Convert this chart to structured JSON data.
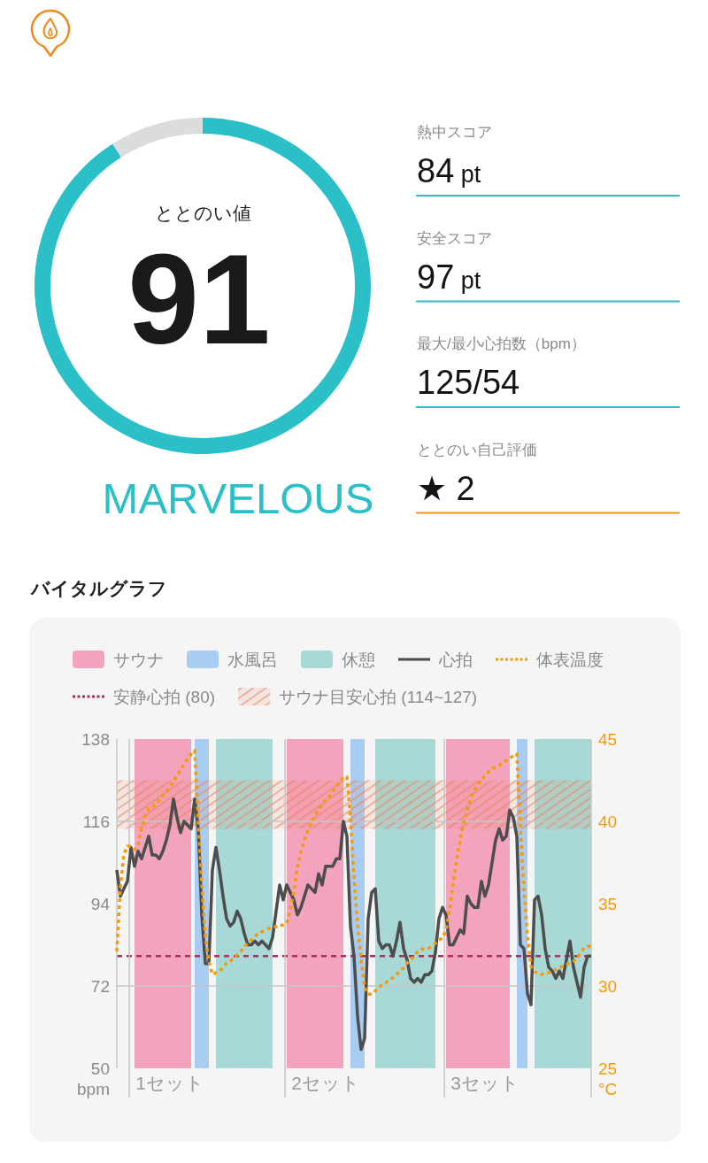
{
  "chart_data": [
    {
      "type": "donut",
      "title": "ととのい値",
      "categories": [
        null,
        null
      ],
      "values": [
        91,
        9
      ],
      "colors": [
        "#2bbfc8",
        "#dcdcdc"
      ],
      "value_labels": [
        "91",
        null
      ],
      "annotations": [
        "MARVELOUS"
      ]
    },
    {
      "type": "other",
      "annotations": [
        "熱中スコア",
        "84 pt",
        "安全スコア",
        "97 pt",
        "最大/最小心拍数（bpm）",
        "125/54",
        "ととのい自己評価",
        "★ 2"
      ]
    },
    {
      "type": "line",
      "title": "バイタルグラフ",
      "ylabel": "bpm",
      "y2label": "°C",
      "ylim": [
        50,
        138
      ],
      "yticks": [
        50,
        72,
        94,
        116,
        138
      ],
      "y2lim": [
        25,
        45
      ],
      "y2ticks": [
        25,
        30,
        35,
        40,
        45
      ],
      "legend": "top",
      "categories": [
        null,
        null,
        null,
        null,
        null,
        null,
        null,
        null,
        null,
        null,
        null,
        null,
        null,
        null,
        null,
        "1セット",
        null,
        null,
        null,
        null,
        null,
        null,
        null,
        null,
        null,
        null,
        null,
        null,
        null,
        null,
        null,
        null,
        null,
        null,
        null,
        null,
        null,
        null,
        null,
        null,
        null,
        null,
        null,
        null,
        null,
        null,
        null,
        null,
        null,
        null,
        null,
        null,
        null,
        null,
        null,
        null,
        null,
        null,
        null,
        "2セット",
        null,
        null,
        null,
        null,
        null,
        null,
        null,
        null,
        null,
        null,
        null,
        null,
        null,
        null,
        null,
        null,
        null,
        null,
        null,
        null,
        null,
        null,
        null,
        null,
        null,
        null,
        null,
        null,
        null,
        null,
        null,
        null,
        null,
        null,
        null,
        null,
        null,
        null,
        null,
        null,
        null,
        null,
        null,
        null,
        "3セット",
        null,
        null,
        null,
        null,
        null,
        null,
        null,
        null,
        null,
        null,
        null,
        null,
        null,
        null,
        null,
        null,
        null,
        null,
        null,
        null,
        null,
        null,
        null,
        null,
        null,
        null,
        null,
        null,
        null,
        null
      ],
      "series": [
        {
          "name": "サウナ",
          "type": "area",
          "color": "#f4a3bd",
          "values": [
            null,
            null,
            null,
            null,
            null,
            138,
            138,
            138,
            138,
            138,
            138,
            138,
            138,
            138,
            138,
            138,
            138,
            138,
            138,
            138,
            138,
            138,
            null,
            null,
            null,
            null,
            null,
            null,
            null,
            null,
            null,
            null,
            null,
            null,
            null,
            null,
            null,
            null,
            null,
            null,
            null,
            null,
            null,
            null,
            null,
            null,
            null,
            null,
            138,
            138,
            138,
            138,
            138,
            138,
            138,
            138,
            138,
            138,
            138,
            138,
            138,
            138,
            138,
            138,
            138,
            null,
            null,
            null,
            null,
            null,
            null,
            null,
            null,
            null,
            null,
            null,
            null,
            null,
            null,
            null,
            null,
            null,
            null,
            null,
            null,
            null,
            null,
            null,
            null,
            null,
            null,
            null,
            null,
            138,
            138,
            138,
            138,
            138,
            138,
            138,
            138,
            138,
            138,
            138,
            138,
            138,
            138,
            138,
            138,
            138,
            138,
            138,
            null,
            null,
            null,
            null,
            null,
            null,
            null,
            null,
            null,
            null,
            null,
            null,
            null,
            null,
            null,
            null,
            null,
            null,
            null,
            null,
            null,
            null,
            null
          ]
        },
        {
          "name": "水風呂",
          "type": "area",
          "color": "#a9cdf2",
          "values": [
            null,
            null,
            null,
            null,
            null,
            null,
            null,
            null,
            null,
            null,
            null,
            null,
            null,
            null,
            null,
            null,
            null,
            null,
            null,
            null,
            null,
            null,
            138,
            138,
            138,
            138,
            138,
            null,
            null,
            null,
            null,
            null,
            null,
            null,
            null,
            null,
            null,
            null,
            null,
            null,
            null,
            null,
            null,
            null,
            null,
            null,
            null,
            null,
            null,
            null,
            null,
            null,
            null,
            null,
            null,
            null,
            null,
            null,
            null,
            null,
            null,
            null,
            null,
            null,
            null,
            null,
            138,
            138,
            138,
            138,
            138,
            null,
            null,
            null,
            null,
            null,
            null,
            null,
            null,
            null,
            null,
            null,
            null,
            null,
            null,
            null,
            null,
            null,
            null,
            null,
            null,
            null,
            null,
            null,
            null,
            null,
            null,
            null,
            null,
            null,
            null,
            null,
            null,
            null,
            null,
            null,
            null,
            null,
            null,
            null,
            null,
            null,
            null,
            138,
            138,
            138,
            138,
            null,
            null,
            null,
            null,
            null,
            null,
            null,
            null,
            null,
            null,
            null,
            null,
            null,
            null,
            null,
            null,
            null,
            null
          ]
        },
        {
          "name": "休憩",
          "type": "area",
          "color": "#a8d9d6",
          "values": [
            null,
            null,
            null,
            null,
            null,
            null,
            null,
            null,
            null,
            null,
            null,
            null,
            null,
            null,
            null,
            null,
            null,
            null,
            null,
            null,
            null,
            null,
            null,
            null,
            null,
            null,
            null,
            null,
            138,
            138,
            138,
            138,
            138,
            138,
            138,
            138,
            138,
            138,
            138,
            138,
            138,
            138,
            138,
            138,
            138,
            null,
            null,
            null,
            null,
            null,
            null,
            null,
            null,
            null,
            null,
            null,
            null,
            null,
            null,
            null,
            null,
            null,
            null,
            null,
            null,
            null,
            null,
            null,
            null,
            null,
            null,
            null,
            null,
            138,
            138,
            138,
            138,
            138,
            138,
            138,
            138,
            138,
            138,
            138,
            138,
            138,
            138,
            138,
            138,
            138,
            138,
            null,
            null,
            null,
            null,
            null,
            null,
            null,
            null,
            null,
            null,
            null,
            null,
            null,
            null,
            null,
            null,
            null,
            null,
            null,
            null,
            null,
            null,
            null,
            null,
            null,
            null,
            null,
            138,
            138,
            138,
            138,
            138,
            138,
            138,
            138,
            138,
            138,
            138,
            138,
            138,
            138,
            138,
            138,
            138
          ]
        },
        {
          "name": "心拍",
          "color": "#4d4d4d",
          "line_style": "solid",
          "values": [
            103,
            96,
            98,
            100,
            109,
            104,
            108,
            106,
            109,
            112,
            107,
            107,
            106,
            108,
            111,
            115,
            122,
            117,
            113,
            116,
            115,
            114,
            122,
            114,
            91,
            78,
            78,
            103,
            109,
            103,
            96,
            90,
            88,
            89,
            92,
            90,
            86,
            83,
            83,
            84,
            83,
            84,
            83,
            82,
            85,
            92,
            99,
            95,
            99,
            97,
            95,
            91,
            93,
            96,
            99,
            98,
            97,
            102,
            99,
            104,
            104,
            104,
            106,
            106,
            116,
            112,
            88,
            80,
            64,
            55,
            58,
            90,
            97,
            98,
            84,
            82,
            83,
            83,
            80,
            84,
            89,
            82,
            79,
            74,
            73,
            74,
            73,
            75,
            75,
            76,
            81,
            90,
            93,
            91,
            83,
            83,
            85,
            87,
            86,
            96,
            94,
            93,
            93,
            100,
            96,
            99,
            105,
            111,
            114,
            111,
            112,
            119,
            117,
            112,
            83,
            82,
            70,
            67,
            95,
            96,
            91,
            82,
            77,
            76,
            74,
            76,
            74,
            79,
            84,
            77,
            73,
            69,
            77,
            80,
            80
          ]
        },
        {
          "name": "体表温度",
          "color": "#f59a0a",
          "axis": "y2",
          "line_style": "dotted",
          "values": [
            32.1,
            36.0,
            38.0,
            38.5,
            38.5,
            38.3,
            38.5,
            39.6,
            40.3,
            40.8,
            40.9,
            41.0,
            41.3,
            41.6,
            41.8,
            42.1,
            42.4,
            42.8,
            43.1,
            43.5,
            43.8,
            44.1,
            44.3,
            40.1,
            36.2,
            33.0,
            31.5,
            30.7,
            30.8,
            30.9,
            31.1,
            31.4,
            31.5,
            31.7,
            31.9,
            32.1,
            32.4,
            32.6,
            32.8,
            33.0,
            33.2,
            33.3,
            33.4,
            33.5,
            33.6,
            33.6,
            33.7,
            33.7,
            33.8,
            34.6,
            35.8,
            37.2,
            38.1,
            38.9,
            39.5,
            39.9,
            40.4,
            40.7,
            41.0,
            41.3,
            41.5,
            41.8,
            42.1,
            42.4,
            42.7,
            42.7,
            40.3,
            36.6,
            33.8,
            31.5,
            29.9,
            29.5,
            29.5,
            29.7,
            29.9,
            30.1,
            30.2,
            30.4,
            30.5,
            30.7,
            30.9,
            31.1,
            31.4,
            31.6,
            31.8,
            32.1,
            32.2,
            32.3,
            32.3,
            32.4,
            32.6,
            32.8,
            32.9,
            33.4,
            34.6,
            36.2,
            37.7,
            38.9,
            39.9,
            40.7,
            41.4,
            41.9,
            42.2,
            42.5,
            42.8,
            43.0,
            43.2,
            43.3,
            43.4,
            43.5,
            43.7,
            43.8,
            44.0,
            44.1,
            39.7,
            35.9,
            33.0,
            31.2,
            30.9,
            30.7,
            30.7,
            30.8,
            30.8,
            30.9,
            31.0,
            31.1,
            31.2,
            31.3,
            31.4,
            31.5,
            31.7,
            32.0,
            32.3,
            32.4,
            32.4
          ]
        }
      ],
      "bands": [
        {
          "axis": "y",
          "from": 114,
          "to": 127,
          "label": "サウナ目安心拍 (114~127)",
          "color": "#e8835e"
        }
      ],
      "ref_lines": [
        {
          "axis": "y",
          "value": 80,
          "label": "安静心拍 (80)",
          "color": "#a8325e",
          "line_style": "dashed"
        },
        {
          "axis": "y",
          "value": 116,
          "color": "#c6c6c6"
        },
        {
          "axis": "y",
          "value": 72,
          "color": "#c6c6c6"
        }
      ]
    }
  ]
}
